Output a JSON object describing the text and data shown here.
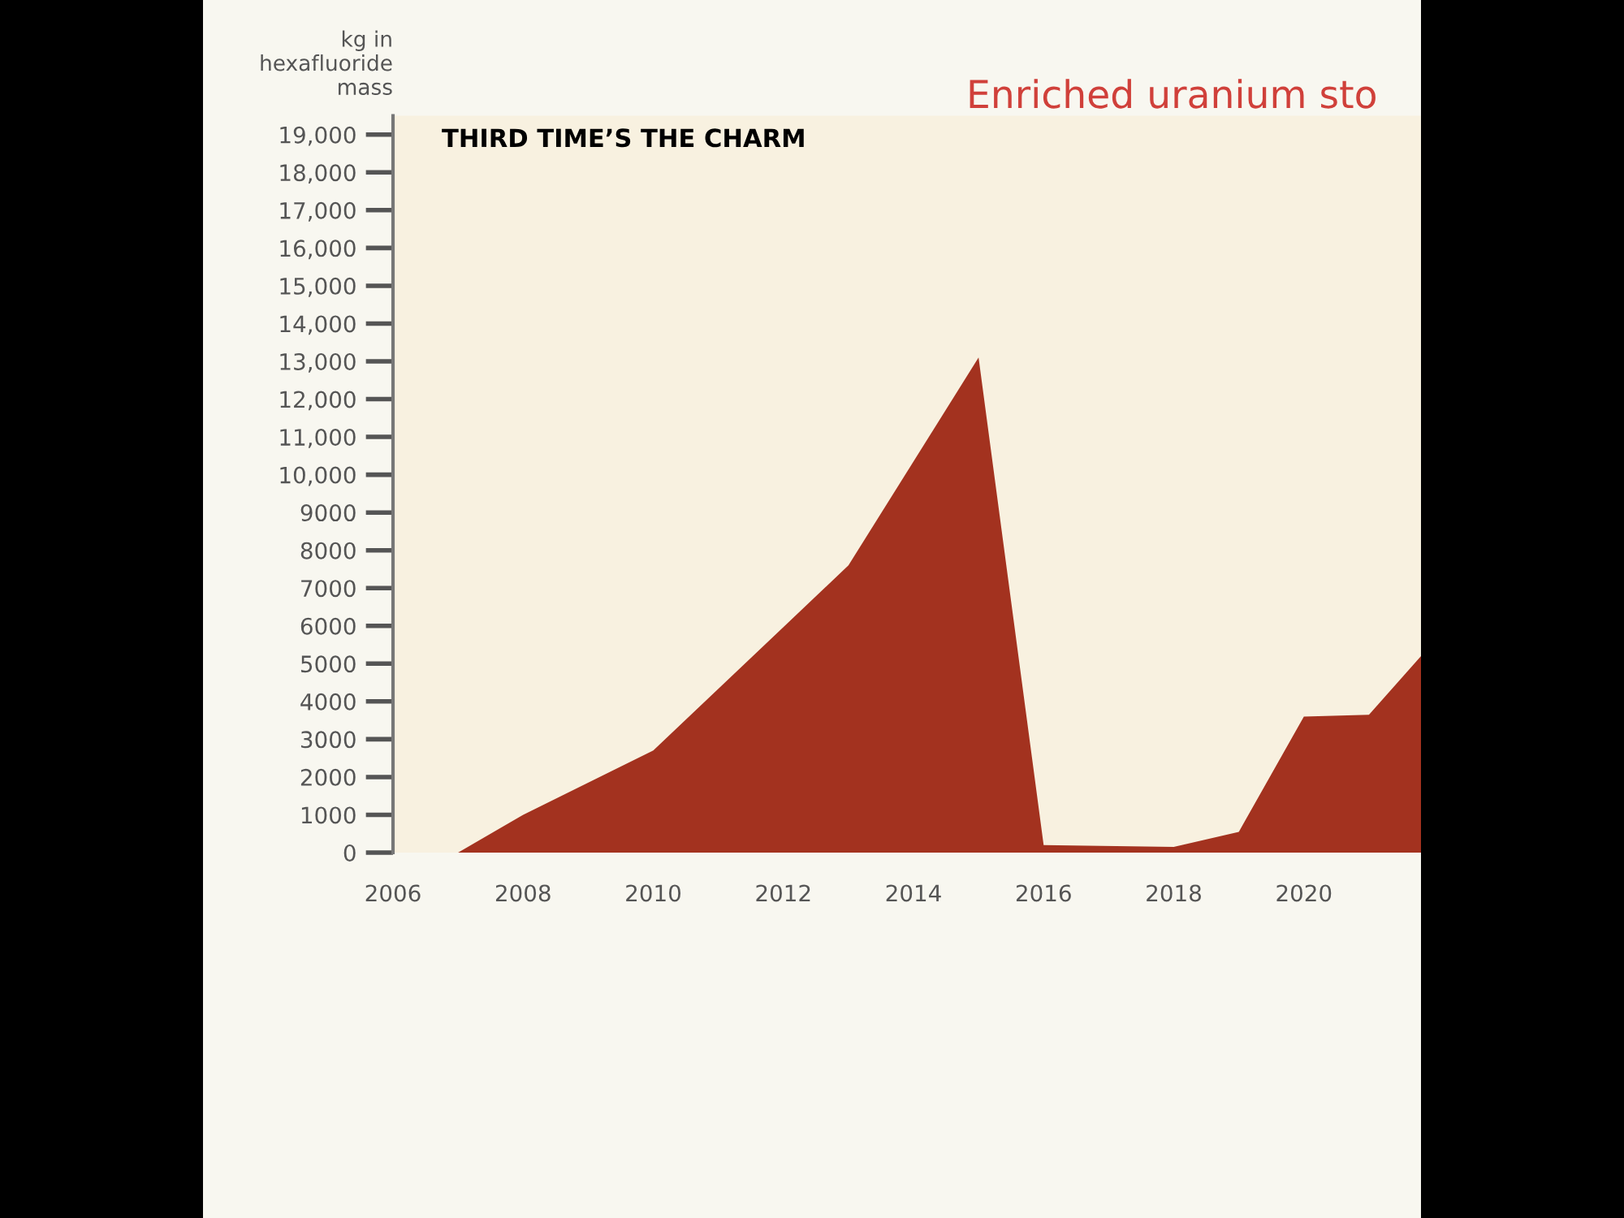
{
  "chart_data": {
    "type": "area",
    "title": "Enriched uranium sto",
    "subtitle": "THIRD TIME’S THE CHARM",
    "ylabel": "kg in\nhexafluoride\nmass",
    "x": [
      2006,
      2007,
      2008,
      2010,
      2013,
      2015,
      2016,
      2018,
      2019,
      2020,
      2021,
      2021.8
    ],
    "series": [
      {
        "color": "#a3321f",
        "values": [
          0,
          0,
          1000,
          2700,
          7600,
          13100,
          200,
          150,
          550,
          3600,
          3650,
          5200
        ]
      }
    ],
    "xlim": [
      2006,
      2021.8
    ],
    "xticks": [
      2006,
      2008,
      2010,
      2012,
      2014,
      2016,
      2018,
      2020
    ],
    "ylim": [
      0,
      19500
    ],
    "yticks": [
      0,
      1000,
      2000,
      3000,
      4000,
      5000,
      6000,
      7000,
      8000,
      9000,
      {
        "value": 10000,
        "label": "10,000"
      },
      {
        "value": 11000,
        "label": "11,000"
      },
      {
        "value": 12000,
        "label": "12,000"
      },
      {
        "value": 13000,
        "label": "13,000"
      },
      {
        "value": 14000,
        "label": "14,000"
      },
      {
        "value": 15000,
        "label": "15,000"
      },
      {
        "value": 16000,
        "label": "16,000"
      },
      {
        "value": 17000,
        "label": "17,000"
      },
      {
        "value": 18000,
        "label": "18,000"
      },
      {
        "value": 19000,
        "label": "19,000"
      }
    ],
    "grid": false,
    "legend": false
  }
}
